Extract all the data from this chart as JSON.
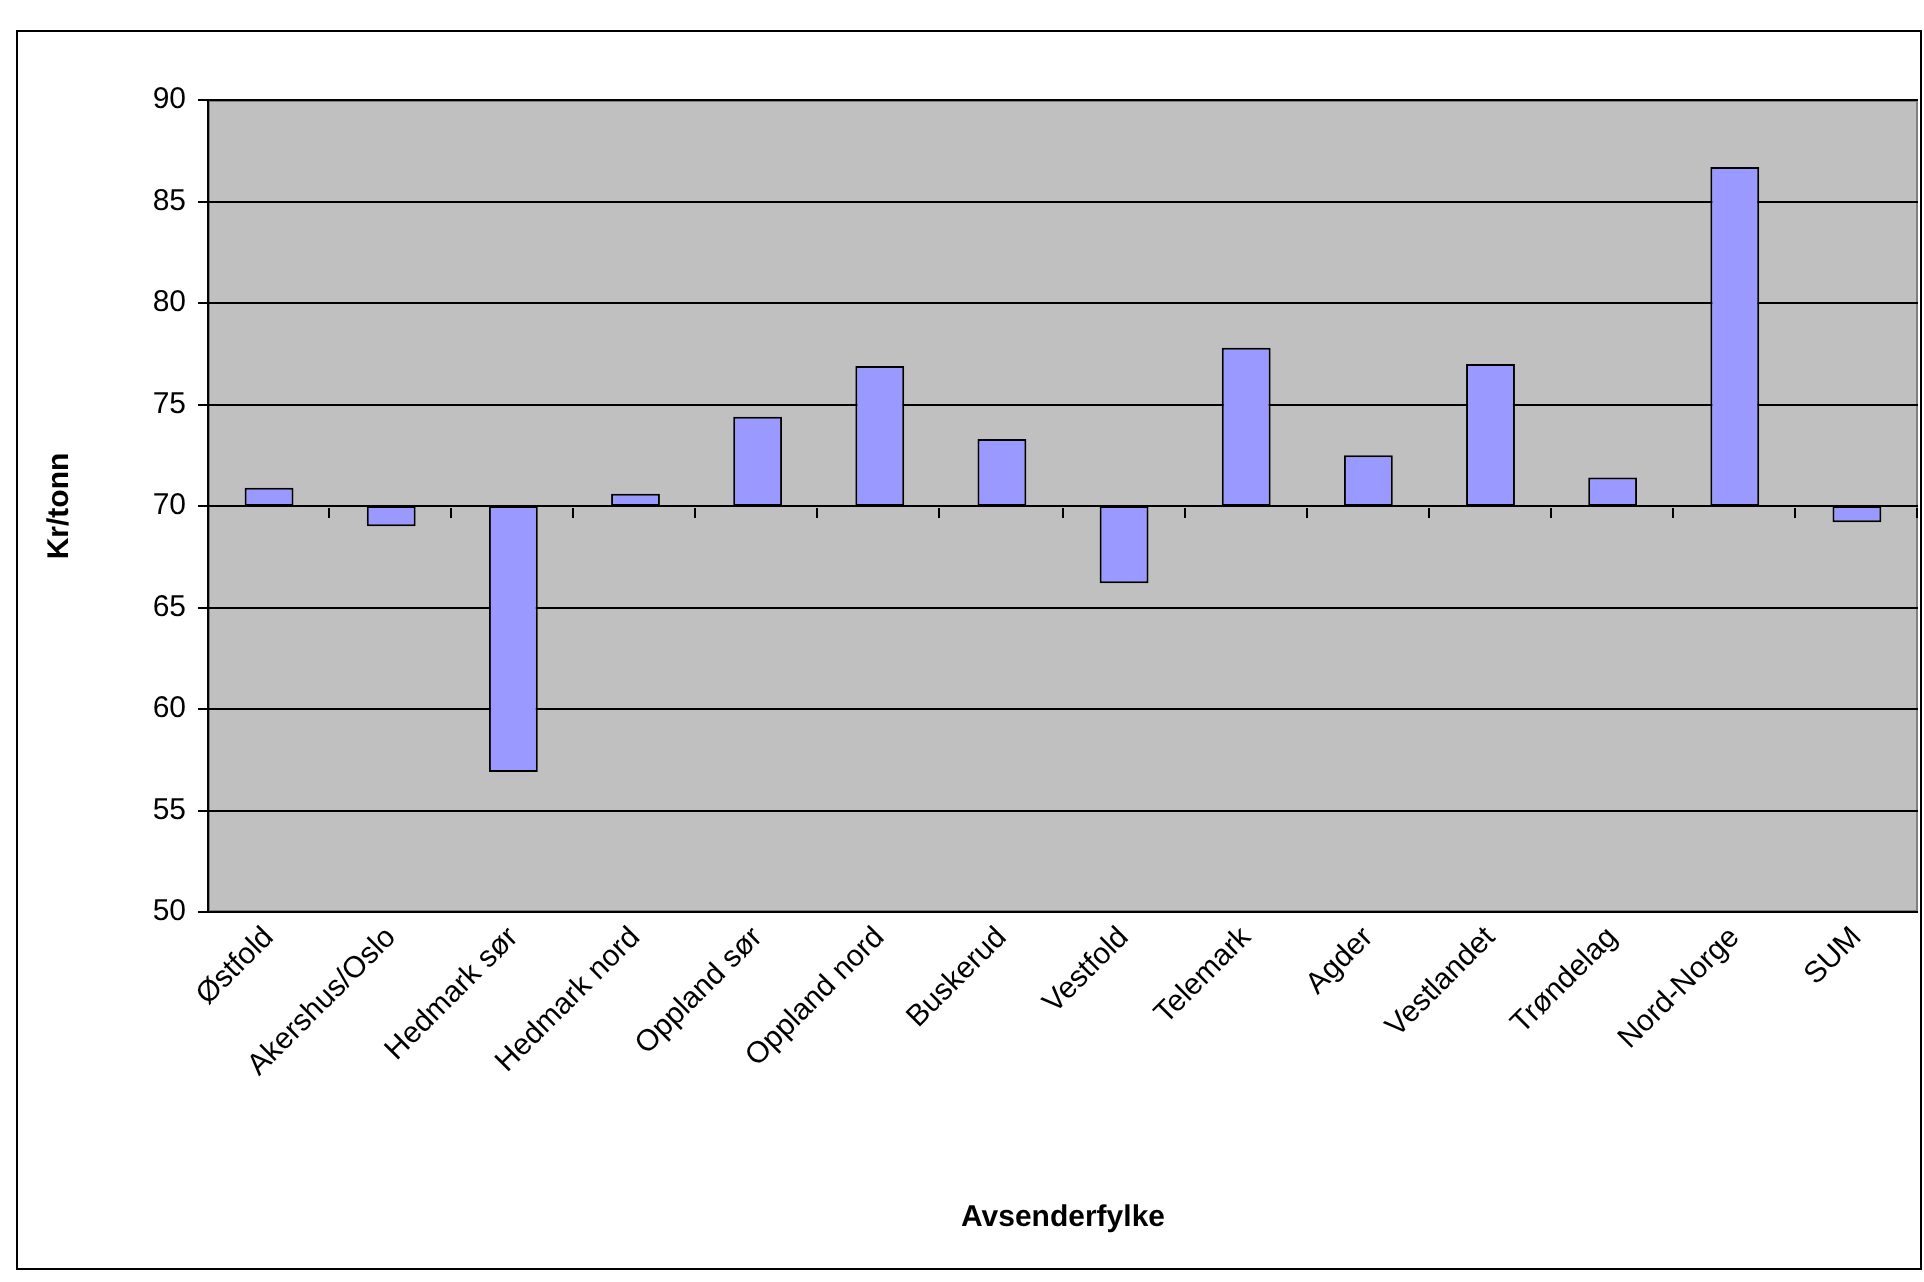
{
  "chart_data": {
    "type": "bar",
    "xlabel": "Avsenderfylke",
    "ylabel": "Kr/tonn",
    "categories": [
      "Østfold",
      "Akershus/Oslo",
      "Hedmark sør",
      "Hedmark nord",
      "Oppland sør",
      "Oppland nord",
      "Buskerud",
      "Vestfold",
      "Telemark",
      "Agder",
      "Vestlandet",
      "Trøndelag",
      "Nord-Norge",
      "SUM"
    ],
    "base": [
      70,
      70,
      70,
      70,
      70,
      70,
      70,
      70,
      70,
      70,
      70,
      70,
      70,
      70
    ],
    "values": [
      0.9,
      -1.0,
      -13.1,
      0.6,
      4.4,
      6.9,
      3.3,
      -3.8,
      7.8,
      2.5,
      7.0,
      1.4,
      16.7,
      -0.8
    ],
    "color": "#9999ff",
    "ylim": [
      50,
      90
    ],
    "yticks": [
      50,
      55,
      60,
      65,
      70,
      75,
      80,
      85,
      90
    ],
    "grid": "y"
  }
}
